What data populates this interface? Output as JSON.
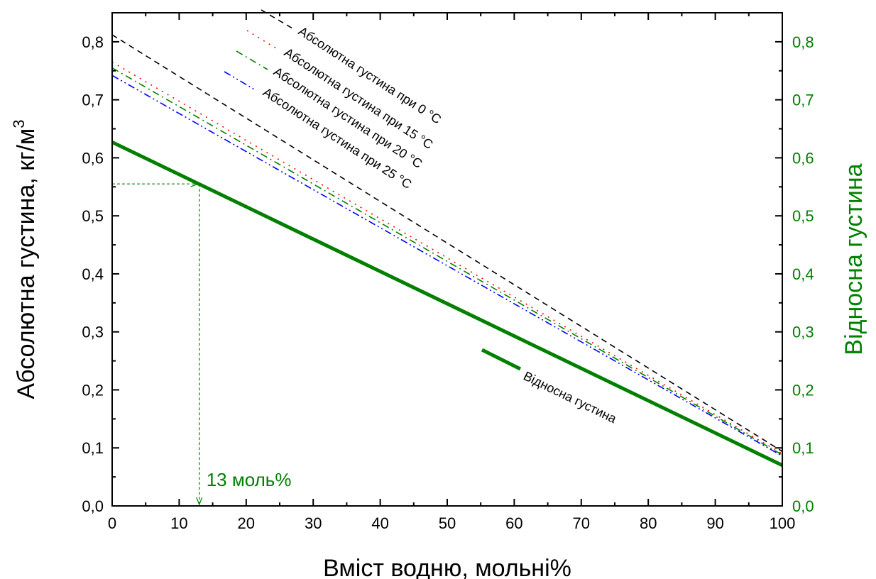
{
  "chart_data": {
    "type": "line",
    "x": [
      0,
      100
    ],
    "xlim": [
      0,
      100
    ],
    "ylim_left": [
      0,
      0.85
    ],
    "ylim_right": [
      0,
      0.85
    ],
    "x_ticks": [
      "0",
      "10",
      "20",
      "30",
      "40",
      "50",
      "60",
      "70",
      "80",
      "90",
      "100"
    ],
    "y_ticks": [
      "0,0",
      "0,1",
      "0,2",
      "0,3",
      "0,4",
      "0,5",
      "0,6",
      "0,7",
      "0,8"
    ],
    "xlabel": "Вміст водню, мольні%",
    "ylabel_left": "Абсолютна густина, кг/м",
    "ylabel_left_sup": "3",
    "ylabel_right": "Відносна густина",
    "grid": false,
    "series": [
      {
        "name": "Абсолютна густина при 0 °C",
        "x": [
          0,
          100
        ],
        "y": [
          0.812,
          0.094
        ],
        "color": "#000000",
        "style": "dashed",
        "axis": "left"
      },
      {
        "name": "Абсолютна густина при 15 °C",
        "x": [
          0,
          100
        ],
        "y": [
          0.765,
          0.09
        ],
        "color": "#ff0000",
        "style": "dotted",
        "axis": "left"
      },
      {
        "name": "Абсолютна густина при 20 °C",
        "x": [
          0,
          100
        ],
        "y": [
          0.755,
          0.088
        ],
        "color": "#008000",
        "style": "dashdot",
        "axis": "left"
      },
      {
        "name": "Абсолютна густина при 25 °C",
        "x": [
          0,
          100
        ],
        "y": [
          0.742,
          0.086
        ],
        "color": "#0000ff",
        "style": "dashdotdot",
        "axis": "left"
      },
      {
        "name": "Відносна густина",
        "x": [
          0,
          100
        ],
        "y": [
          0.627,
          0.07
        ],
        "color": "#008000",
        "style": "solid",
        "axis": "right"
      }
    ],
    "marker": {
      "x": 13,
      "y": 0.555,
      "label": "13 моль%",
      "color": "#008000"
    }
  }
}
